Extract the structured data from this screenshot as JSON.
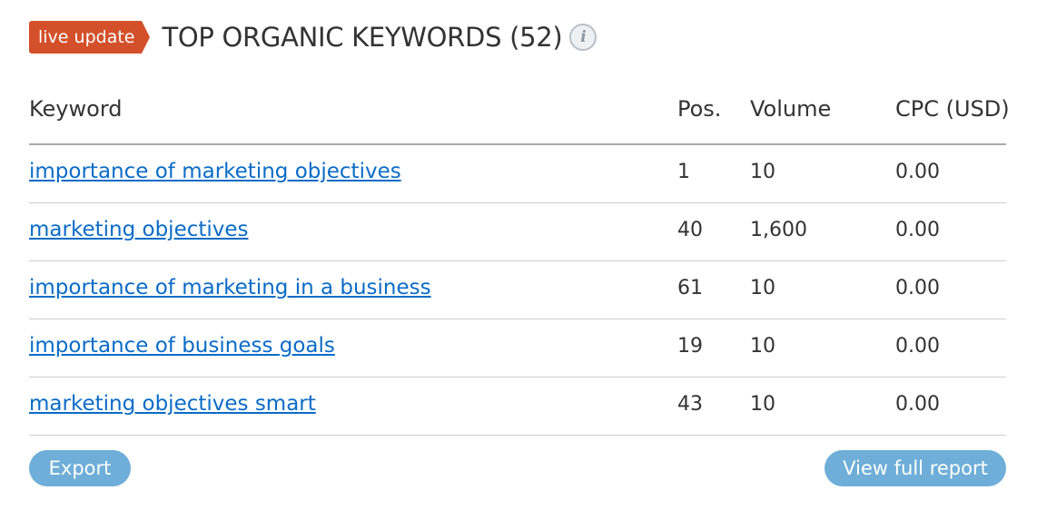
{
  "header": {
    "badge": "live update",
    "title": "TOP ORGANIC KEYWORDS (52)",
    "info_icon": "i"
  },
  "table": {
    "columns": [
      "Keyword",
      "Pos.",
      "Volume",
      "CPC (USD)"
    ],
    "rows": [
      {
        "keyword": "importance of marketing objectives",
        "pos": "1",
        "volume": "10",
        "cpc": "0.00"
      },
      {
        "keyword": "marketing objectives",
        "pos": "40",
        "volume": "1,600",
        "cpc": "0.00"
      },
      {
        "keyword": "importance of marketing in a business",
        "pos": "61",
        "volume": "10",
        "cpc": "0.00"
      },
      {
        "keyword": "importance of business goals",
        "pos": "19",
        "volume": "10",
        "cpc": "0.00"
      },
      {
        "keyword": "marketing objectives smart",
        "pos": "43",
        "volume": "10",
        "cpc": "0.00"
      }
    ]
  },
  "buttons": {
    "export": "Export",
    "view_full_report": "View full report"
  },
  "colors": {
    "badge": "#d3502b",
    "link": "#0a6cc7",
    "button": "#6eaed8"
  }
}
